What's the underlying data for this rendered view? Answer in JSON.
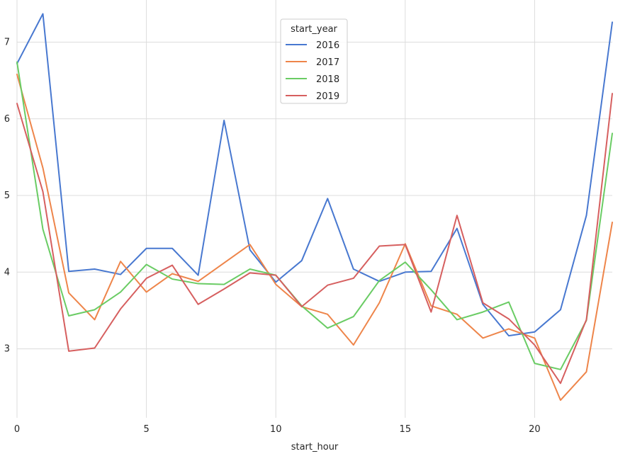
{
  "chart_data": {
    "type": "line",
    "title": "",
    "xlabel": "start_hour",
    "ylabel": "",
    "xlim": [
      0,
      23
    ],
    "ylim": [
      2.1,
      7.55
    ],
    "xticks": [
      0,
      5,
      10,
      15,
      20
    ],
    "yticks": [
      3,
      4,
      5,
      6,
      7
    ],
    "grid": true,
    "legend": {
      "title": "start_year",
      "placement": "top-center"
    },
    "x": [
      0,
      1,
      2,
      3,
      4,
      5,
      6,
      7,
      8,
      9,
      10,
      11,
      12,
      13,
      14,
      15,
      16,
      17,
      18,
      19,
      20,
      21,
      22,
      23
    ],
    "series": [
      {
        "name": "2016",
        "color": "#4878d0",
        "values": [
          6.72,
          7.37,
          4.01,
          4.04,
          3.97,
          4.31,
          4.31,
          3.96,
          5.98,
          4.29,
          3.87,
          4.15,
          4.96,
          4.04,
          3.88,
          4.0,
          4.01,
          4.57,
          3.58,
          3.17,
          3.22,
          3.51,
          4.74,
          7.26
        ]
      },
      {
        "name": "2017",
        "color": "#ee854a",
        "values": [
          6.58,
          5.36,
          3.73,
          3.38,
          4.14,
          3.74,
          3.98,
          3.88,
          4.12,
          4.36,
          3.84,
          3.55,
          3.45,
          3.05,
          3.6,
          4.37,
          3.56,
          3.45,
          3.14,
          3.26,
          3.14,
          2.33,
          2.7,
          4.65
        ]
      },
      {
        "name": "2018",
        "color": "#6acc64",
        "values": [
          6.74,
          4.56,
          3.43,
          3.51,
          3.74,
          4.1,
          3.91,
          3.85,
          3.84,
          4.04,
          3.96,
          3.56,
          3.27,
          3.42,
          3.89,
          4.13,
          3.77,
          3.38,
          3.48,
          3.61,
          2.81,
          2.73,
          3.37,
          5.81
        ]
      },
      {
        "name": "2019",
        "color": "#d65f5f",
        "values": [
          6.2,
          5.05,
          2.97,
          3.01,
          3.52,
          3.92,
          4.09,
          3.58,
          3.78,
          3.99,
          3.96,
          3.55,
          3.83,
          3.92,
          4.34,
          4.36,
          3.48,
          4.74,
          3.6,
          3.39,
          3.05,
          2.55,
          3.38,
          6.33
        ]
      }
    ]
  }
}
